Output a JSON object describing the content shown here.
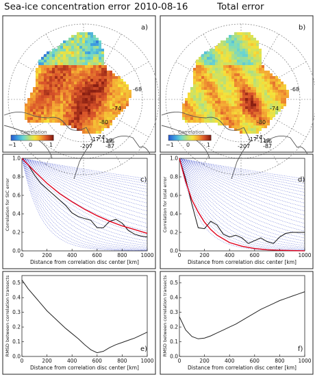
{
  "header": {
    "left_title": "Sea-ice concentration error",
    "date": "2010-08-16",
    "right_title": "Total error"
  },
  "maps": [
    {
      "letter": "a)",
      "colorbar_label": "Correlation",
      "colorbar_ticks": [
        "−1",
        "0",
        "1"
      ],
      "field": "sic_error"
    },
    {
      "letter": "b)",
      "colorbar_label": "Correlation",
      "colorbar_ticks": [
        "−1",
        "0",
        "1"
      ],
      "field": "total_error"
    }
  ],
  "map_labels": [
    "-68",
    "-74",
    "-80",
    "-86",
    "-87",
    "-207",
    "-17",
    "-74",
    "-117"
  ],
  "map_colors": {
    "colormap": [
      "#2b5fd0",
      "#3fa0e0",
      "#6cd7d0",
      "#b7e07a",
      "#f5e33a",
      "#f4a233",
      "#d9532a",
      "#8a1f12"
    ],
    "coast": "#555555",
    "grid": "#777777"
  },
  "chart_data": [
    {
      "type": "line",
      "panel": "c)",
      "xlabel": "Distance from correlation disc center [km]",
      "ylabel": "Correlation for SIC error",
      "xlim": [
        0,
        1000
      ],
      "ylim": [
        0,
        1.0
      ],
      "xticks": [
        0,
        200,
        400,
        600,
        800,
        1000
      ],
      "yticks": [
        0.0,
        0.2,
        0.4,
        0.6,
        0.8,
        1.0
      ],
      "series": [
        {
          "role": "empirical",
          "color": "#111111",
          "x": [
            0,
            50,
            100,
            150,
            200,
            250,
            300,
            350,
            400,
            450,
            500,
            550,
            600,
            650,
            700,
            750,
            800,
            850,
            900,
            950,
            1000
          ],
          "y": [
            1.0,
            0.93,
            0.82,
            0.73,
            0.67,
            0.61,
            0.55,
            0.49,
            0.41,
            0.37,
            0.35,
            0.33,
            0.25,
            0.25,
            0.32,
            0.34,
            0.3,
            0.22,
            0.18,
            0.16,
            0.15
          ]
        },
        {
          "role": "fit",
          "color": "#e0001a",
          "x": [
            0,
            100,
            200,
            300,
            400,
            500,
            600,
            700,
            800,
            900,
            1000
          ],
          "y": [
            1.0,
            0.86,
            0.73,
            0.62,
            0.53,
            0.45,
            0.38,
            0.32,
            0.27,
            0.23,
            0.19
          ]
        }
      ],
      "envelope_range_km": [
        150,
        4000
      ]
    },
    {
      "type": "line",
      "panel": "d)",
      "xlabel": "Distance from correlation disc center [km]",
      "ylabel": "Correlation for total error",
      "xlim": [
        0,
        1000
      ],
      "ylim": [
        0,
        1.0
      ],
      "xticks": [
        0,
        200,
        400,
        600,
        800,
        1000
      ],
      "yticks": [
        0.0,
        0.2,
        0.4,
        0.6,
        0.8,
        1.0
      ],
      "series": [
        {
          "role": "empirical",
          "color": "#111111",
          "x": [
            0,
            50,
            100,
            150,
            200,
            250,
            300,
            350,
            400,
            450,
            500,
            550,
            600,
            650,
            700,
            750,
            800,
            850,
            900,
            950,
            1000
          ],
          "y": [
            1.0,
            0.78,
            0.5,
            0.25,
            0.24,
            0.32,
            0.28,
            0.18,
            0.15,
            0.17,
            0.14,
            0.08,
            0.11,
            0.14,
            0.1,
            0.08,
            0.15,
            0.19,
            0.2,
            0.2,
            0.2
          ]
        },
        {
          "role": "fit",
          "color": "#e0001a",
          "x": [
            0,
            50,
            100,
            150,
            200,
            250,
            300,
            400,
            500,
            600,
            700,
            800,
            900,
            1000
          ],
          "y": [
            1.0,
            0.75,
            0.55,
            0.42,
            0.31,
            0.23,
            0.17,
            0.09,
            0.05,
            0.025,
            0.012,
            0.006,
            0.003,
            0.001
          ]
        }
      ],
      "envelope_range_km": [
        150,
        4000
      ]
    },
    {
      "type": "line",
      "panel": "e)",
      "xlabel": "Distance from correlation disc center [km]",
      "ylabel": "RMSD between correlation transects",
      "xlim": [
        0,
        1000
      ],
      "ylim": [
        0,
        0.55
      ],
      "xticks": [
        0,
        200,
        400,
        600,
        800,
        1000
      ],
      "yticks": [
        0.0,
        0.1,
        0.2,
        0.3,
        0.4,
        0.5
      ],
      "series": [
        {
          "role": "rmsd",
          "color": "#222222",
          "x": [
            0,
            50,
            100,
            150,
            200,
            250,
            300,
            350,
            400,
            450,
            500,
            550,
            600,
            650,
            700,
            750,
            800,
            850,
            900,
            950,
            1000
          ],
          "y": [
            0.52,
            0.46,
            0.41,
            0.36,
            0.31,
            0.27,
            0.23,
            0.19,
            0.155,
            0.12,
            0.08,
            0.045,
            0.025,
            0.035,
            0.06,
            0.08,
            0.095,
            0.11,
            0.125,
            0.145,
            0.165
          ]
        }
      ]
    },
    {
      "type": "line",
      "panel": "f)",
      "xlabel": "Distance from correlation disc center [km]",
      "ylabel": "RMSD between correlation transects",
      "xlim": [
        0,
        1000
      ],
      "ylim": [
        0,
        0.55
      ],
      "xticks": [
        0,
        200,
        400,
        600,
        800,
        1000
      ],
      "yticks": [
        0.0,
        0.1,
        0.2,
        0.3,
        0.4,
        0.5
      ],
      "series": [
        {
          "role": "rmsd",
          "color": "#222222",
          "x": [
            0,
            50,
            100,
            150,
            200,
            250,
            300,
            350,
            400,
            450,
            500,
            550,
            600,
            650,
            700,
            750,
            800,
            850,
            900,
            950,
            1000
          ],
          "y": [
            0.27,
            0.18,
            0.135,
            0.12,
            0.125,
            0.14,
            0.16,
            0.18,
            0.2,
            0.22,
            0.245,
            0.27,
            0.295,
            0.32,
            0.34,
            0.36,
            0.38,
            0.395,
            0.41,
            0.425,
            0.44
          ]
        }
      ]
    }
  ]
}
